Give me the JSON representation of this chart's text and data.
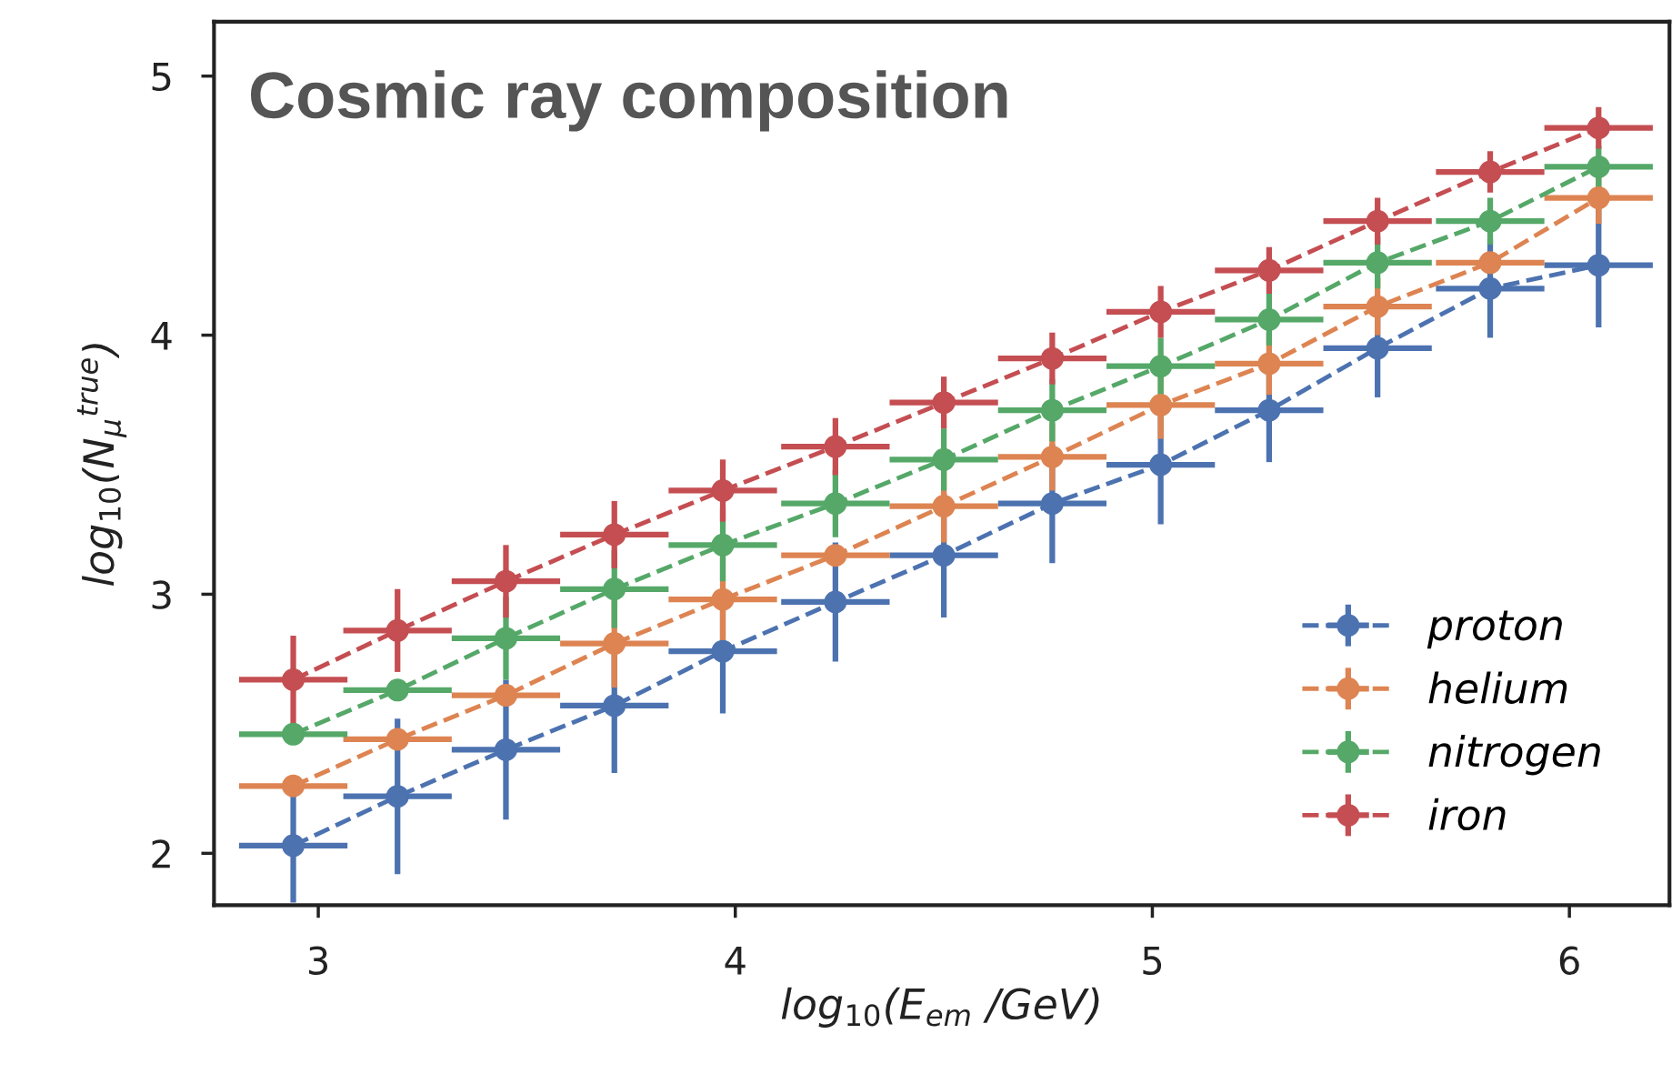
{
  "chart_data": {
    "type": "line",
    "title": "Cosmic ray composition",
    "xlabel": "log$_{10}$(E$_{em}$ /GeV)",
    "ylabel": "log$_{10}$(N$_{μ}$$^{true}$)",
    "xlim": [
      2.75,
      6.24
    ],
    "ylim": [
      1.8,
      5.21
    ],
    "xticks": [
      3,
      4,
      5,
      6
    ],
    "yticks": [
      2,
      3,
      4,
      5
    ],
    "grid": false,
    "legend": "bottom right",
    "marker": "circle",
    "line_style": "dashed",
    "x": [
      2.94,
      3.19,
      3.45,
      3.71,
      3.97,
      4.24,
      4.5,
      4.76,
      5.02,
      5.28,
      5.54,
      5.81,
      6.07
    ],
    "series": [
      {
        "name": "proton",
        "color": "#4c72b0",
        "values": [
          2.03,
          2.22,
          2.4,
          2.57,
          2.78,
          2.97,
          3.15,
          3.35,
          3.5,
          3.71,
          3.95,
          4.18,
          4.27
        ],
        "errors": [
          0.22,
          0.3,
          0.27,
          0.26,
          0.24,
          0.23,
          0.24,
          0.23,
          0.23,
          0.2,
          0.19,
          0.19,
          0.24
        ],
        "xerrors": [
          0.13,
          0.13,
          0.13,
          0.13,
          0.13,
          0.13,
          0.13,
          0.13,
          0.13,
          0.13,
          0.13,
          0.13,
          0.13
        ]
      },
      {
        "name": "helium",
        "color": "#dd8452",
        "values": [
          2.26,
          2.44,
          2.61,
          2.81,
          2.98,
          3.15,
          3.34,
          3.53,
          3.73,
          3.89,
          4.11,
          4.28,
          4.53
        ],
        "errors": [
          null,
          null,
          null,
          0.17,
          0.16,
          null,
          0.14,
          0.13,
          0.13,
          0.12,
          0.11,
          null,
          0.1
        ],
        "xerrors": [
          0.13,
          0.13,
          0.13,
          0.13,
          0.13,
          0.13,
          0.13,
          0.13,
          0.13,
          0.13,
          0.13,
          0.13,
          0.13
        ]
      },
      {
        "name": "nitrogen",
        "color": "#55a868",
        "values": [
          2.46,
          2.63,
          2.83,
          3.02,
          3.19,
          3.35,
          3.52,
          3.71,
          3.88,
          4.06,
          4.28,
          4.44,
          4.65
        ],
        "errors": [
          null,
          null,
          0.16,
          0.15,
          0.14,
          0.13,
          0.12,
          0.12,
          0.11,
          0.1,
          0.1,
          0.09,
          0.08
        ],
        "xerrors": [
          0.13,
          0.13,
          0.13,
          0.13,
          0.13,
          0.13,
          0.13,
          0.13,
          0.13,
          0.13,
          0.13,
          0.13,
          0.13
        ]
      },
      {
        "name": "iron",
        "color": "#c44e52",
        "values": [
          2.67,
          2.86,
          3.05,
          3.23,
          3.4,
          3.57,
          3.74,
          3.91,
          4.09,
          4.25,
          4.44,
          4.63,
          4.8
        ],
        "errors": [
          0.17,
          0.16,
          0.14,
          0.13,
          0.12,
          0.11,
          0.1,
          0.1,
          0.1,
          0.09,
          0.09,
          0.08,
          0.08
        ],
        "xerrors": [
          0.13,
          0.13,
          0.13,
          0.13,
          0.13,
          0.13,
          0.13,
          0.13,
          0.13,
          0.13,
          0.13,
          0.13,
          0.13
        ]
      }
    ]
  }
}
